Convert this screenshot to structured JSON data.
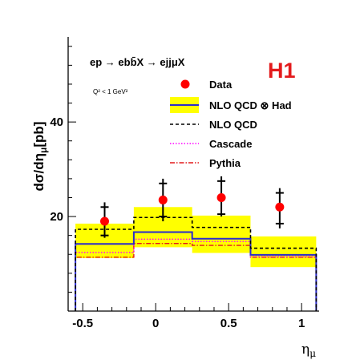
{
  "chart_data": {
    "type": "line",
    "brand_label": "H1",
    "process_label": "ep → ebb̄X → ejjμX",
    "cut_label": "Q² < 1 GeV²",
    "xlabel": "η_μ",
    "ylabel": "dσ/dη_μ [pb]",
    "xlim": [
      -0.6,
      1.12
    ],
    "ylim": [
      0,
      58
    ],
    "x_ticks": [
      -0.5,
      0,
      0.5,
      1
    ],
    "x_tick_labels": [
      "-0.5",
      "0",
      "0.5",
      "1"
    ],
    "y_ticks": [
      20,
      40
    ],
    "y_tick_labels": [
      "20",
      "40"
    ],
    "bin_edges": [
      -0.55,
      -0.15,
      0.25,
      0.65,
      1.1
    ],
    "data": {
      "name": "Data",
      "color": "#ff0000",
      "x": [
        -0.35,
        0.05,
        0.45,
        0.85
      ],
      "y": [
        19.0,
        23.5,
        24.0,
        22.0
      ],
      "stat_lo": [
        16.0,
        20.0,
        20.5,
        18.5
      ],
      "stat_hi": [
        22.0,
        27.0,
        27.5,
        25.0
      ],
      "tot_lo": [
        15.5,
        19.0,
        20.0,
        17.5
      ],
      "tot_hi": [
        23.0,
        28.0,
        28.5,
        26.0
      ]
    },
    "nlo_band": {
      "name": "NLO QCD ⊗ Had",
      "fill_color": "#ffff00",
      "line_color": "#2b2bcc",
      "central": [
        14.2,
        16.7,
        15.3,
        11.9
      ],
      "low": [
        11.2,
        13.5,
        12.3,
        9.3
      ],
      "high": [
        18.5,
        22.0,
        20.2,
        15.8
      ]
    },
    "nlo_qcd": {
      "name": "NLO  QCD",
      "color": "#000000",
      "values": [
        17.3,
        19.8,
        17.7,
        13.3
      ]
    },
    "cascade": {
      "name": "Cascade",
      "color": "#ff00ff",
      "values": [
        12.4,
        15.2,
        14.7,
        11.5
      ]
    },
    "pythia": {
      "name": "Pythia",
      "color": "#e31a1c",
      "values": [
        11.4,
        14.3,
        13.9,
        11.4
      ]
    },
    "legend_position": "top-right"
  }
}
